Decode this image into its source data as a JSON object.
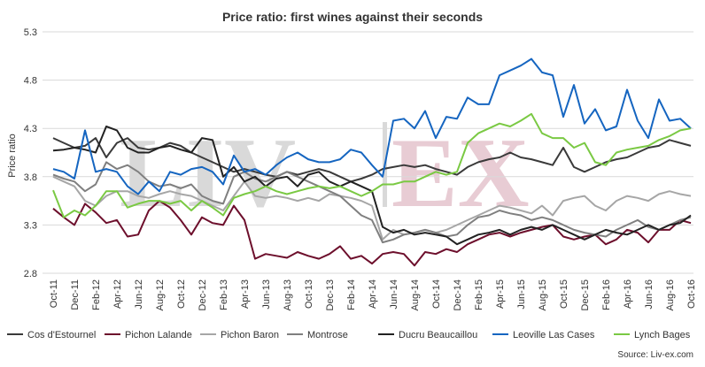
{
  "chart_data": {
    "type": "line",
    "title": "Price ratio: first wines against their seconds",
    "ylabel": "Price ratio",
    "xlabel": "",
    "ylim": [
      2.8,
      5.3
    ],
    "yticks": [
      2.8,
      3.3,
      3.8,
      4.3,
      4.8,
      5.3
    ],
    "ytick_labels": [
      "2.8",
      "3.3",
      "3.8",
      "4.3",
      "4.8",
      "5.3"
    ],
    "grid": true,
    "legend_position": "bottom",
    "source": "Source: Liv-ex.com",
    "watermark": "LIV-EX",
    "x": [
      "Oct-11",
      "Nov-11",
      "Dec-11",
      "Jan-12",
      "Feb-12",
      "Mar-12",
      "Apr-12",
      "May-12",
      "Jun-12",
      "Jul-12",
      "Aug-12",
      "Sep-12",
      "Oct-12",
      "Nov-12",
      "Dec-12",
      "Jan-13",
      "Feb-13",
      "Mar-13",
      "Apr-13",
      "May-13",
      "Jun-13",
      "Jul-13",
      "Aug-13",
      "Sep-13",
      "Oct-13",
      "Nov-13",
      "Dec-13",
      "Jan-14",
      "Feb-14",
      "Mar-14",
      "Apr-14",
      "May-14",
      "Jun-14",
      "Jul-14",
      "Aug-14",
      "Sep-14",
      "Oct-14",
      "Nov-14",
      "Dec-14",
      "Jan-15",
      "Feb-15",
      "Mar-15",
      "Apr-15",
      "May-15",
      "Jun-15",
      "Jul-15",
      "Aug-15",
      "Sep-15",
      "Oct-15",
      "Nov-15",
      "Dec-15",
      "Jan-16",
      "Feb-16",
      "Mar-16",
      "Apr-16",
      "May-16",
      "Jun-16",
      "Jul-16",
      "Aug-16",
      "Sep-16",
      "Oct-16"
    ],
    "x_tick_labels": [
      "Oct-11",
      "Dec-11",
      "Feb-12",
      "Apr-12",
      "Jun-12",
      "Aug-12",
      "Oct-12",
      "Dec-12",
      "Feb-13",
      "Apr-13",
      "Jun-13",
      "Aug-13",
      "Oct-13",
      "Dec-13",
      "Feb-14",
      "Apr-14",
      "Jun-14",
      "Aug-14",
      "Oct-14",
      "Dec-14",
      "Feb-15",
      "Apr-15",
      "Jun-15",
      "Aug-15",
      "Oct-15",
      "Dec-15",
      "Feb-16",
      "Apr-16",
      "Jun-16",
      "Aug-16",
      "Oct-16"
    ],
    "series": [
      {
        "name": "Cos d'Estournel",
        "color": "#3a3a3a",
        "values": [
          4.2,
          4.15,
          4.1,
          4.12,
          4.2,
          4.0,
          4.15,
          4.2,
          4.1,
          4.08,
          4.1,
          4.15,
          4.12,
          4.05,
          4.0,
          3.95,
          3.9,
          3.85,
          3.88,
          3.85,
          3.82,
          3.8,
          3.85,
          3.82,
          3.85,
          3.88,
          3.85,
          3.8,
          3.75,
          3.78,
          3.82,
          3.88,
          3.9,
          3.92,
          3.9,
          3.92,
          3.88,
          3.85,
          3.82,
          3.9,
          3.95,
          3.98,
          4.0,
          4.05,
          4.0,
          3.98,
          3.95,
          3.92,
          4.1,
          3.9,
          3.85,
          3.9,
          3.95,
          3.98,
          4.0,
          4.05,
          4.1,
          4.12,
          4.18,
          4.15,
          4.12
        ]
      },
      {
        "name": "Pichon Lalande",
        "color": "#6d0f2c",
        "values": [
          3.47,
          3.38,
          3.3,
          3.52,
          3.43,
          3.32,
          3.35,
          3.18,
          3.2,
          3.45,
          3.55,
          3.48,
          3.35,
          3.2,
          3.38,
          3.32,
          3.3,
          3.5,
          3.35,
          2.95,
          3.0,
          2.98,
          2.96,
          3.02,
          2.98,
          2.95,
          3.0,
          3.08,
          2.95,
          2.98,
          2.9,
          3.0,
          3.02,
          3.0,
          2.88,
          3.02,
          3.0,
          3.05,
          3.02,
          3.1,
          3.15,
          3.2,
          3.22,
          3.18,
          3.22,
          3.25,
          3.28,
          3.3,
          3.18,
          3.15,
          3.18,
          3.2,
          3.1,
          3.15,
          3.25,
          3.22,
          3.12,
          3.25,
          3.25,
          3.35,
          3.32
        ]
      },
      {
        "name": "Pichon Baron",
        "color": "#a6a6a6",
        "values": [
          3.8,
          3.75,
          3.7,
          3.55,
          3.5,
          3.6,
          3.65,
          3.65,
          3.6,
          3.58,
          3.62,
          3.65,
          3.62,
          3.6,
          3.55,
          3.5,
          3.45,
          3.6,
          3.75,
          3.6,
          3.58,
          3.6,
          3.58,
          3.55,
          3.58,
          3.55,
          3.62,
          3.6,
          3.58,
          3.55,
          3.5,
          3.15,
          3.25,
          3.2,
          3.22,
          3.25,
          3.22,
          3.25,
          3.3,
          3.35,
          3.4,
          3.45,
          3.5,
          3.48,
          3.45,
          3.42,
          3.5,
          3.4,
          3.55,
          3.58,
          3.6,
          3.5,
          3.45,
          3.55,
          3.6,
          3.58,
          3.55,
          3.62,
          3.65,
          3.62,
          3.6
        ]
      },
      {
        "name": "Montrose",
        "color": "#7f7f7f",
        "values": [
          3.82,
          3.78,
          3.75,
          3.65,
          3.72,
          3.95,
          3.88,
          3.92,
          3.85,
          3.75,
          3.7,
          3.72,
          3.68,
          3.72,
          3.6,
          3.55,
          3.52,
          3.8,
          3.85,
          3.78,
          3.75,
          3.8,
          3.85,
          3.8,
          3.75,
          3.7,
          3.65,
          3.6,
          3.5,
          3.4,
          3.35,
          3.12,
          3.15,
          3.2,
          3.22,
          3.25,
          3.22,
          3.18,
          3.2,
          3.3,
          3.38,
          3.4,
          3.45,
          3.42,
          3.4,
          3.35,
          3.38,
          3.35,
          3.3,
          3.25,
          3.22,
          3.2,
          3.18,
          3.25,
          3.3,
          3.35,
          3.28,
          3.25,
          3.3,
          3.35,
          3.38
        ]
      },
      {
        "name": "Ducru Beaucaillou",
        "color": "#222222",
        "values": [
          4.07,
          4.08,
          4.1,
          4.08,
          4.05,
          4.32,
          4.28,
          4.1,
          4.05,
          4.05,
          4.1,
          4.12,
          4.08,
          4.05,
          4.2,
          4.18,
          3.8,
          3.9,
          3.75,
          3.8,
          3.7,
          3.78,
          3.8,
          3.7,
          3.82,
          3.85,
          3.75,
          3.7,
          3.75,
          3.7,
          3.65,
          3.28,
          3.22,
          3.25,
          3.2,
          3.22,
          3.2,
          3.18,
          3.1,
          3.15,
          3.2,
          3.22,
          3.25,
          3.2,
          3.25,
          3.28,
          3.25,
          3.3,
          3.25,
          3.2,
          3.15,
          3.2,
          3.25,
          3.22,
          3.2,
          3.25,
          3.3,
          3.25,
          3.3,
          3.32,
          3.4
        ]
      },
      {
        "name": "Leoville Las Cases",
        "color": "#1565c0",
        "values": [
          3.88,
          3.85,
          3.78,
          4.28,
          3.85,
          3.88,
          3.85,
          3.7,
          3.62,
          3.75,
          3.65,
          3.85,
          3.82,
          3.88,
          3.9,
          3.85,
          3.72,
          4.02,
          3.85,
          3.88,
          3.82,
          3.92,
          4.0,
          4.05,
          3.98,
          3.95,
          3.95,
          3.98,
          4.08,
          4.05,
          3.92,
          3.8,
          4.38,
          4.4,
          4.3,
          4.48,
          4.2,
          4.42,
          4.4,
          4.62,
          4.55,
          4.55,
          4.85,
          4.9,
          4.95,
          5.02,
          4.88,
          4.85,
          4.42,
          4.75,
          4.35,
          4.5,
          4.28,
          4.32,
          4.7,
          4.38,
          4.2,
          4.6,
          4.38,
          4.4,
          4.3
        ]
      },
      {
        "name": "Lynch Bages",
        "color": "#7ac943",
        "values": [
          3.66,
          3.38,
          3.45,
          3.4,
          3.5,
          3.65,
          3.65,
          3.48,
          3.52,
          3.55,
          3.55,
          3.52,
          3.55,
          3.45,
          3.55,
          3.48,
          3.4,
          3.58,
          3.62,
          3.65,
          3.7,
          3.65,
          3.62,
          3.65,
          3.68,
          3.7,
          3.68,
          3.7,
          3.65,
          3.6,
          3.65,
          3.72,
          3.72,
          3.75,
          3.75,
          3.8,
          3.85,
          3.82,
          3.85,
          4.15,
          4.25,
          4.3,
          4.35,
          4.32,
          4.38,
          4.45,
          4.25,
          4.2,
          4.2,
          4.1,
          4.15,
          3.95,
          3.92,
          4.05,
          4.08,
          4.1,
          4.12,
          4.18,
          4.22,
          4.28,
          4.3
        ]
      }
    ]
  }
}
